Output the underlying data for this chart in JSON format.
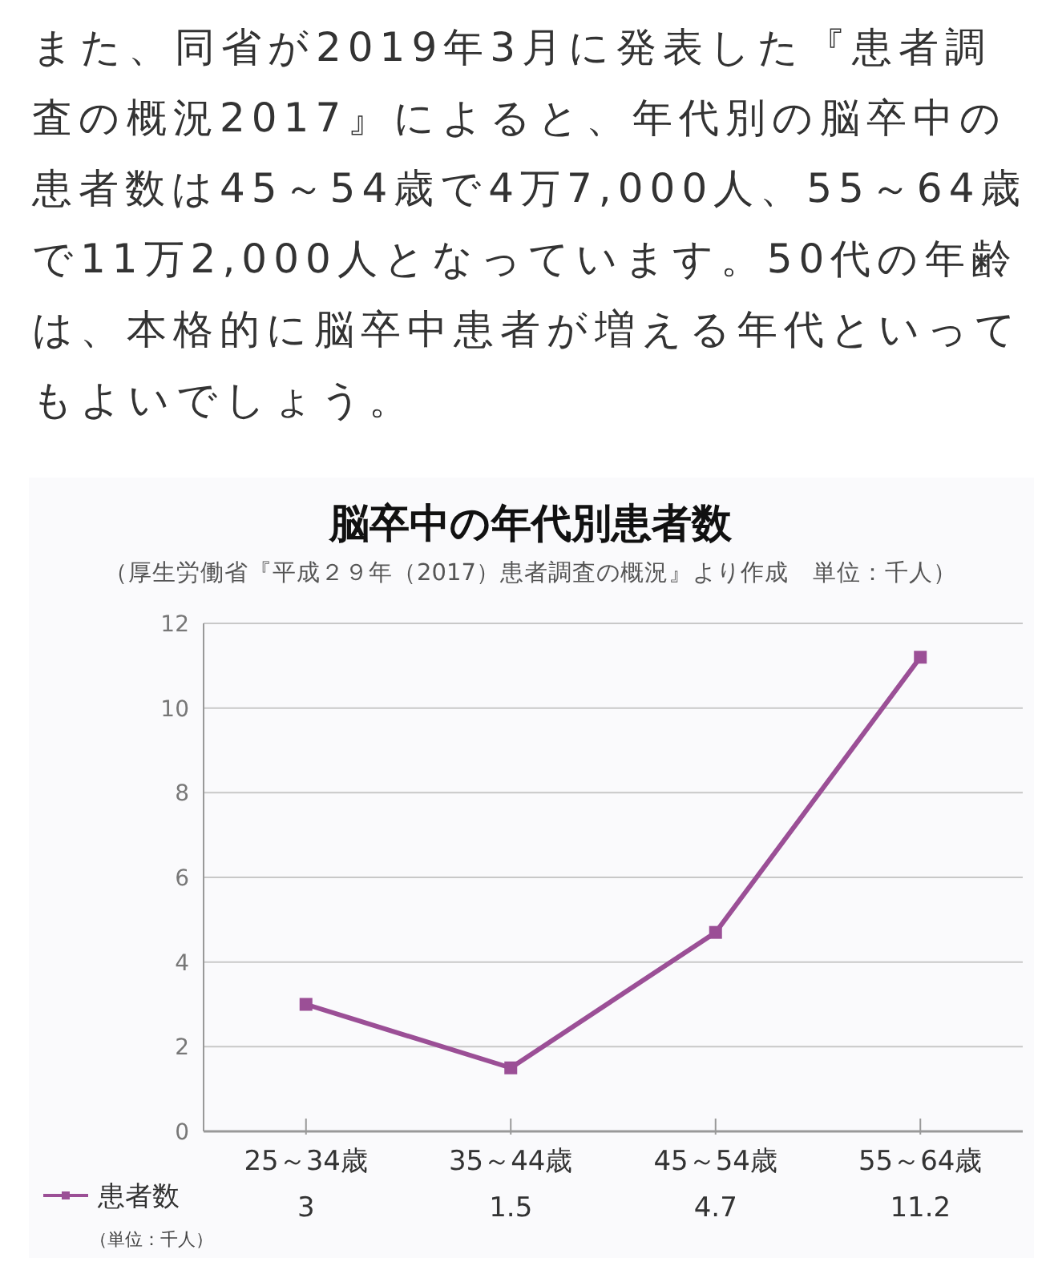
{
  "chart_data": {
    "type": "line",
    "title": "脳卒中の年代別患者数",
    "subtitle": "（厚生労働省『平成２９年（2017）患者調査の概況』より作成　単位：千人）",
    "annotations": [
      "また、同省が2019年3月に発表した『患者調査の概況2017』によると、年代別の脳卒中の患者数は45～54歳で4万7,000人、55～64歳で11万2,000人となっています。50代の年齢は、本格的に脳卒中患者が増える年代といってもよいでしょう。",
      "（単位：千人）"
    ],
    "categories": [
      "25～34歳",
      "35～44歳",
      "45～54歳",
      "55～64歳"
    ],
    "series": [
      {
        "name": "患者数",
        "color": "#9b4f96",
        "values": [
          3,
          1.5,
          4.7,
          11.2
        ]
      }
    ],
    "ylim": [
      0,
      12
    ],
    "yticks": [
      0,
      2,
      4,
      6,
      8,
      10,
      12
    ],
    "grid": "y",
    "marker": "square",
    "line_style": "solid",
    "legend": "bottom left",
    "data_labels": true
  }
}
